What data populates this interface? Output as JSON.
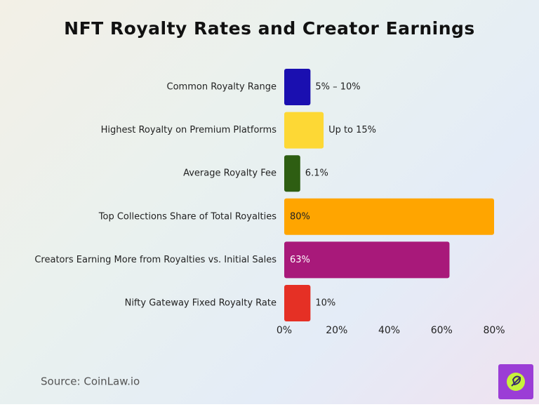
{
  "chart_data": {
    "type": "hbar",
    "title": "NFT Royalty Rates and Creator Earnings",
    "categories": [
      "Common Royalty Range",
      "Highest Royalty on Premium Platforms",
      "Average Royalty Fee",
      "Top Collections Share of Total Royalties",
      "Creators Earning More from Royalties vs. Initial Sales",
      "Nifty Gateway Fixed Royalty Rate"
    ],
    "values": [
      10,
      15,
      6.1,
      80,
      63,
      10
    ],
    "value_labels": [
      "5% – 10%",
      "Up to 15%",
      "6.1%",
      "80%",
      "63%",
      "10%"
    ],
    "colors": [
      "#1a0fb0",
      "#fdd835",
      "#2e5e12",
      "#ffa500",
      "#a8197a",
      "#e53025"
    ],
    "xlim": [
      0,
      80
    ],
    "xticks": [
      {
        "value": 0,
        "label": "0%"
      },
      {
        "value": 20,
        "label": "20%"
      },
      {
        "value": 40,
        "label": "40%"
      },
      {
        "value": 60,
        "label": "60%"
      },
      {
        "value": 80,
        "label": "80%"
      }
    ],
    "source": "Source: CoinLaw.io"
  }
}
